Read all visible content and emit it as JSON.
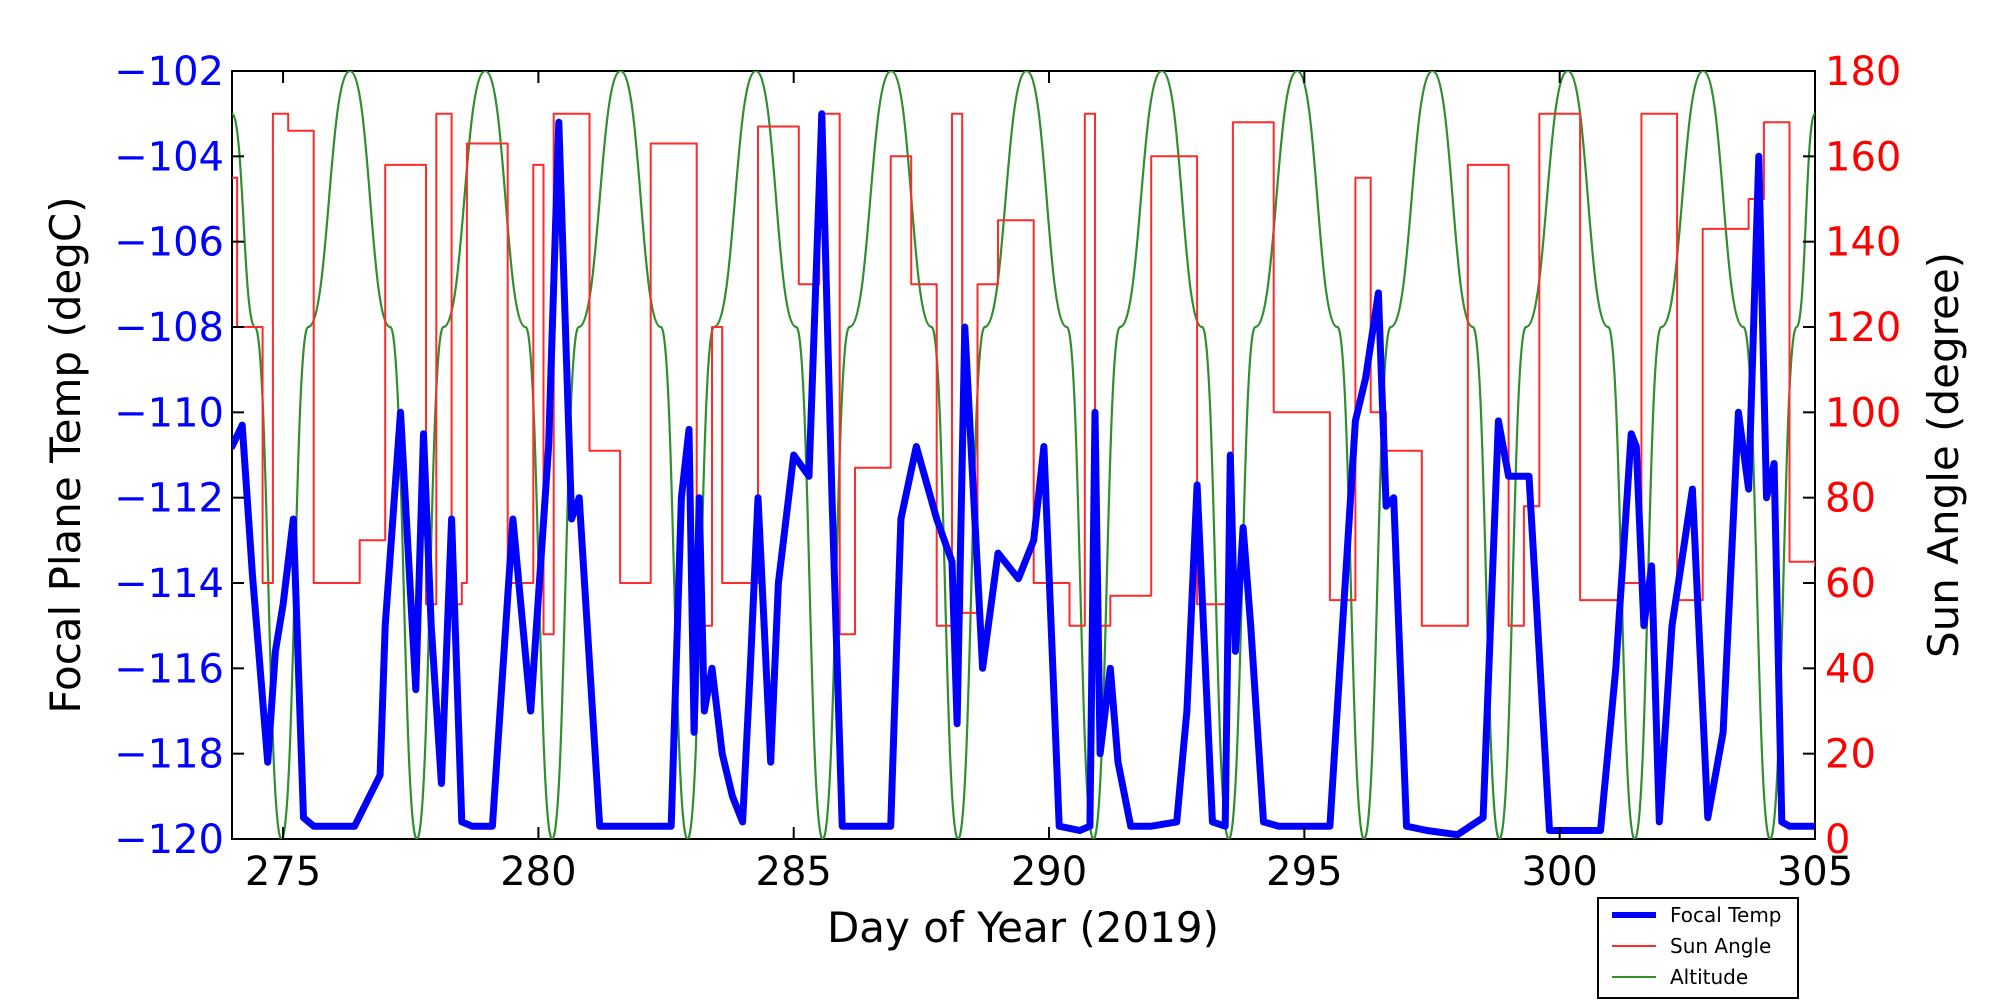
{
  "chart_data": {
    "type": "line",
    "xlabel": "Day of Year (2019)",
    "ylabel_left": "Focal Plane Temp (degC)",
    "ylabel_right": "Sun Angle (degree)",
    "xlim": [
      274,
      305
    ],
    "ylim_left": [
      -120,
      -102
    ],
    "ylim_right": [
      0,
      180
    ],
    "x_ticks": [
      275,
      280,
      285,
      290,
      295,
      300,
      305
    ],
    "y_left_ticks": [
      -120,
      -118,
      -116,
      -114,
      -112,
      -110,
      -108,
      -106,
      -104,
      -102
    ],
    "y_right_ticks": [
      0,
      20,
      40,
      60,
      80,
      100,
      120,
      140,
      160,
      180
    ],
    "x_tick_labels": [
      "275",
      "280",
      "285",
      "290",
      "295",
      "300",
      "305"
    ],
    "y_left_tick_labels": [
      "−120",
      "−118",
      "−116",
      "−114",
      "−112",
      "−110",
      "−108",
      "−106",
      "−104",
      "−102"
    ],
    "y_right_tick_labels": [
      "0",
      "20",
      "40",
      "60",
      "80",
      "100",
      "120",
      "140",
      "160",
      "180"
    ],
    "grid": false,
    "legend_position": "bottom-right (below axes)",
    "colors": {
      "left_axis": "#0000ff",
      "right_axis": "#ff0000",
      "focal": "#0000ff",
      "sun": "#ff2a2a",
      "altitude": "#2f8f2f"
    },
    "series": [
      {
        "name": "Focal Temp",
        "axis": "left",
        "color": "#0000ff",
        "x": [
          274.0,
          274.2,
          274.4,
          274.55,
          274.7,
          274.85,
          275.0,
          275.2,
          275.4,
          275.6,
          275.9,
          276.4,
          276.9,
          277.0,
          277.3,
          277.6,
          277.75,
          277.9,
          278.1,
          278.3,
          278.5,
          278.7,
          279.1,
          279.5,
          279.85,
          280.2,
          280.4,
          280.65,
          280.8,
          281.2,
          281.6,
          282.1,
          282.6,
          282.8,
          282.95,
          283.05,
          283.15,
          283.25,
          283.4,
          283.6,
          283.8,
          284.0,
          284.15,
          284.3,
          284.55,
          284.7,
          285.0,
          285.3,
          285.55,
          285.75,
          285.95,
          286.5,
          286.9,
          287.1,
          287.4,
          287.8,
          288.1,
          288.2,
          288.35,
          288.7,
          289.0,
          289.4,
          289.7,
          289.9,
          290.2,
          290.6,
          290.8,
          290.9,
          291.0,
          291.2,
          291.35,
          291.6,
          292.0,
          292.5,
          292.7,
          292.9,
          293.2,
          293.45,
          293.55,
          293.65,
          293.8,
          293.95,
          294.2,
          294.5,
          295.0,
          295.5,
          296.0,
          296.2,
          296.45,
          296.6,
          296.75,
          297.0,
          297.4,
          298.0,
          298.5,
          298.8,
          299.0,
          299.4,
          299.8,
          300.3,
          300.8,
          301.1,
          301.4,
          301.5,
          301.65,
          301.8,
          301.95,
          302.2,
          302.45,
          302.6,
          302.9,
          303.2,
          303.5,
          303.7,
          303.9,
          304.05,
          304.2,
          304.35,
          304.5,
          304.7,
          305.0
        ],
        "y": [
          -110.8,
          -110.3,
          -113.8,
          -116.0,
          -118.2,
          -115.6,
          -114.5,
          -112.5,
          -119.5,
          -119.7,
          -119.7,
          -119.7,
          -118.5,
          -115.0,
          -110.0,
          -116.5,
          -110.5,
          -115.0,
          -118.7,
          -112.5,
          -119.6,
          -119.7,
          -119.7,
          -112.5,
          -117.0,
          -110.8,
          -103.2,
          -112.5,
          -112.0,
          -119.7,
          -119.7,
          -119.7,
          -119.7,
          -112.0,
          -110.4,
          -117.5,
          -112.0,
          -117.0,
          -116.0,
          -118.0,
          -119.0,
          -119.6,
          -116.0,
          -112.0,
          -118.2,
          -114.0,
          -111.0,
          -111.5,
          -103.0,
          -112.0,
          -119.7,
          -119.7,
          -119.7,
          -112.5,
          -110.8,
          -112.5,
          -113.5,
          -117.3,
          -108.0,
          -116.0,
          -113.3,
          -113.9,
          -113.0,
          -110.8,
          -119.7,
          -119.8,
          -119.7,
          -110.0,
          -118.0,
          -116.0,
          -118.2,
          -119.7,
          -119.7,
          -119.6,
          -117.0,
          -111.7,
          -119.6,
          -119.7,
          -111.0,
          -115.6,
          -112.7,
          -115.0,
          -119.6,
          -119.7,
          -119.7,
          -119.7,
          -110.2,
          -109.2,
          -107.2,
          -112.2,
          -112.0,
          -119.7,
          -119.8,
          -119.9,
          -119.5,
          -110.2,
          -111.5,
          -111.5,
          -119.8,
          -119.8,
          -119.8,
          -116.0,
          -110.5,
          -110.8,
          -115.0,
          -113.6,
          -119.6,
          -115.0,
          -113.0,
          -111.8,
          -119.5,
          -117.5,
          -110.0,
          -111.8,
          -104.0,
          -112.0,
          -111.2,
          -119.6,
          -119.7,
          -119.7,
          -119.7
        ]
      },
      {
        "name": "Sun Angle",
        "axis": "right",
        "color": "#ff2a2a",
        "x": [
          274.0,
          274.1,
          274.25,
          274.4,
          274.6,
          274.8,
          275.0,
          275.1,
          275.5,
          275.6,
          276.4,
          276.5,
          276.9,
          277.0,
          277.6,
          277.8,
          278.0,
          278.3,
          278.5,
          278.6,
          279.2,
          279.4,
          279.7,
          279.9,
          280.1,
          280.3,
          280.6,
          281.0,
          281.2,
          281.6,
          282.0,
          282.2,
          282.8,
          283.1,
          283.4,
          283.6,
          283.9,
          284.3,
          284.7,
          285.1,
          285.5,
          285.9,
          286.2,
          286.5,
          286.9,
          287.3,
          287.8,
          288.1,
          288.3,
          288.6,
          289.0,
          289.4,
          289.7,
          290.0,
          290.4,
          290.7,
          290.9,
          291.2,
          291.5,
          292.0,
          292.4,
          292.9,
          293.3,
          293.6,
          294.0,
          294.4,
          294.8,
          295.5,
          295.8,
          296.0,
          296.3,
          296.6,
          296.9,
          297.3,
          297.8,
          298.2,
          298.6,
          299.0,
          299.3,
          299.6,
          300.0,
          300.4,
          300.8,
          301.2,
          301.6,
          302.0,
          302.3,
          302.8,
          303.4,
          303.7,
          304.0,
          304.5,
          305.0
        ],
        "y": [
          155,
          120,
          120,
          120,
          60,
          170,
          170,
          166,
          166,
          60,
          60,
          70,
          70,
          158,
          158,
          55,
          170,
          55,
          60,
          163,
          163,
          60,
          60,
          158,
          48,
          170,
          170,
          91,
          91,
          60,
          60,
          163,
          163,
          50,
          120,
          60,
          60,
          167,
          167,
          130,
          170,
          48,
          87,
          87,
          160,
          130,
          50,
          170,
          53,
          130,
          145,
          145,
          60,
          60,
          50,
          170,
          50,
          57,
          57,
          160,
          160,
          55,
          55,
          168,
          168,
          100,
          100,
          56,
          56,
          155,
          100,
          91,
          91,
          50,
          50,
          158,
          158,
          50,
          78,
          170,
          170,
          56,
          56,
          60,
          170,
          170,
          56,
          143,
          143,
          150,
          168,
          65,
          64
        ]
      },
      {
        "name": "Altitude",
        "axis": "right",
        "color": "#2f8f2f",
        "period_days": 2.62,
        "x": [
          274.0,
          274.45,
          274.97,
          275.49,
          276.31,
          277.1,
          277.62,
          278.14,
          278.96,
          279.75,
          280.27,
          280.79,
          281.61,
          282.4,
          282.92,
          283.44,
          284.26,
          285.05,
          285.57,
          286.09,
          286.91,
          287.7,
          288.22,
          288.74,
          289.56,
          290.35,
          290.87,
          291.39,
          292.21,
          293.0,
          293.52,
          294.04,
          294.86,
          295.65,
          296.17,
          296.69,
          297.51,
          298.3,
          298.82,
          299.34,
          300.16,
          300.95,
          301.47,
          301.99,
          302.81,
          303.6,
          304.12,
          304.64,
          305.0
        ],
        "y": [
          170,
          120,
          0,
          120,
          180,
          120,
          0,
          120,
          180,
          120,
          0,
          120,
          180,
          120,
          0,
          120,
          180,
          120,
          0,
          120,
          180,
          120,
          0,
          120,
          180,
          120,
          0,
          120,
          180,
          120,
          0,
          120,
          180,
          120,
          0,
          120,
          180,
          120,
          0,
          120,
          180,
          120,
          0,
          120,
          180,
          120,
          0,
          120,
          170
        ]
      }
    ]
  }
}
